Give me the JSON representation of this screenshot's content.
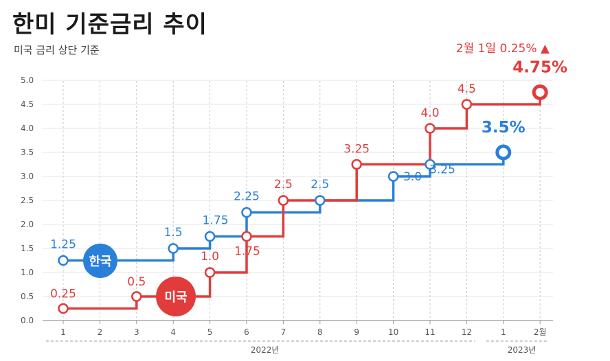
{
  "title": "한미 기준금리 추이",
  "subtitle": "미국 금리 상단 기준",
  "chart_data": {
    "type": "line",
    "step": true,
    "categories": [
      "1",
      "2",
      "3",
      "4",
      "5",
      "6",
      "7",
      "8",
      "9",
      "10",
      "11",
      "12",
      "1",
      "2월"
    ],
    "year_groups": [
      {
        "label": "2022년",
        "from": 0,
        "to": 11
      },
      {
        "label": "2023년",
        "from": 12,
        "to": 13
      }
    ],
    "ylim": [
      0,
      5.0
    ],
    "yticks": [
      "0.0",
      "0.5",
      "1.0",
      "1.5",
      "2.0",
      "2.5",
      "3.0",
      "3.5",
      "4.0",
      "4.5",
      "5.0"
    ],
    "grid": true,
    "series": [
      {
        "name": "한국",
        "color": "#2a7fd9",
        "points": [
          {
            "x": 0,
            "y": 1.25,
            "label": "1.25"
          },
          {
            "x": 3,
            "y": 1.5,
            "label": "1.5"
          },
          {
            "x": 4,
            "y": 1.75,
            "label": "1.75"
          },
          {
            "x": 5,
            "y": 2.25,
            "label": "2.25"
          },
          {
            "x": 7,
            "y": 2.5,
            "label": "2.5"
          },
          {
            "x": 9,
            "y": 3.0,
            "label": "3.0"
          },
          {
            "x": 10,
            "y": 3.25,
            "label": "3.25"
          },
          {
            "x": 12,
            "y": 3.5,
            "label": "3.5%"
          }
        ]
      },
      {
        "name": "미국",
        "color": "#e23b3b",
        "points": [
          {
            "x": 0,
            "y": 0.25,
            "label": "0.25"
          },
          {
            "x": 2,
            "y": 0.5,
            "label": "0.5"
          },
          {
            "x": 4,
            "y": 1.0,
            "label": "1.0"
          },
          {
            "x": 5,
            "y": 1.75,
            "label": "1.75"
          },
          {
            "x": 6,
            "y": 2.5,
            "label": "2.5"
          },
          {
            "x": 8,
            "y": 3.25,
            "label": "3.25"
          },
          {
            "x": 10,
            "y": 4.0,
            "label": "4.0"
          },
          {
            "x": 11,
            "y": 4.5,
            "label": "4.5"
          },
          {
            "x": 13,
            "y": 4.75,
            "label": "4.75%"
          }
        ]
      }
    ],
    "annotation": "2월 1일 0.25% ▲"
  }
}
